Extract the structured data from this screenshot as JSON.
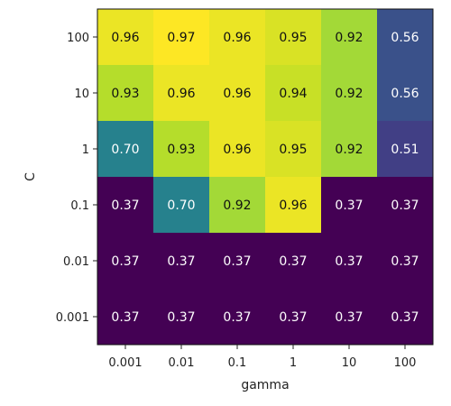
{
  "chart_data": {
    "type": "heatmap",
    "xlabel": "gamma",
    "ylabel": "C",
    "x_categories": [
      "0.001",
      "0.01",
      "0.1",
      "1",
      "10",
      "100"
    ],
    "y_categories": [
      "100",
      "10",
      "1",
      "0.1",
      "0.01",
      "0.001"
    ],
    "values": [
      [
        0.96,
        0.97,
        0.96,
        0.95,
        0.92,
        0.56
      ],
      [
        0.93,
        0.96,
        0.96,
        0.94,
        0.92,
        0.56
      ],
      [
        0.7,
        0.93,
        0.96,
        0.95,
        0.92,
        0.51
      ],
      [
        0.37,
        0.7,
        0.92,
        0.96,
        0.37,
        0.37
      ],
      [
        0.37,
        0.37,
        0.37,
        0.37,
        0.37,
        0.37
      ],
      [
        0.37,
        0.37,
        0.37,
        0.37,
        0.37,
        0.37
      ]
    ],
    "value_format": "2-decimal",
    "colormap": "viridis",
    "color_range": [
      0.37,
      0.97
    ],
    "grid": false,
    "colorbar": false
  },
  "colors": {
    "tick_text": "#222222",
    "light_cell_text": "#111111",
    "dark_cell_text": "#ffffff"
  }
}
